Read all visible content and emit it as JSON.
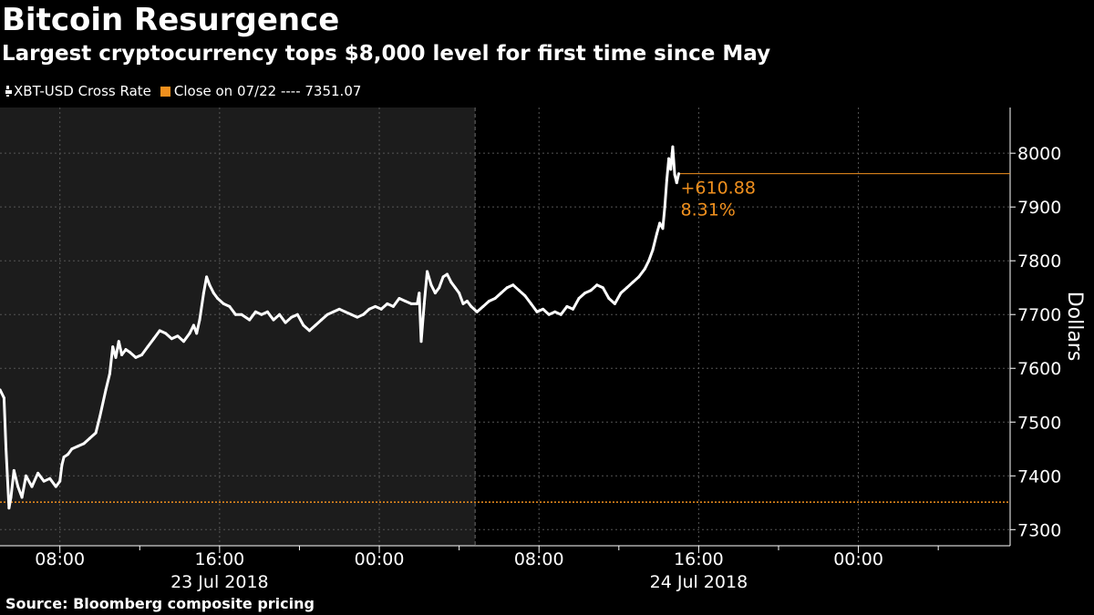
{
  "chart_data": {
    "type": "line",
    "title": "Bitcoin Resurgence",
    "subtitle": "Largest cryptocurrency tops $8,000 level for first time since May",
    "ylabel": "Dollars",
    "ylim": [
      7270,
      8085
    ],
    "y_ticks": [
      7300,
      7400,
      7500,
      7600,
      7700,
      7800,
      7900,
      8000
    ],
    "y_tick_labels": [
      "7300",
      "7400",
      "7500",
      "7600",
      "7700",
      "7800",
      "7900",
      "8000"
    ],
    "x_tick_labels": [
      {
        "hour": 8,
        "label": "08:00"
      },
      {
        "hour": 16,
        "label": "16:00"
      },
      {
        "hour": 24,
        "label": "00:00"
      },
      {
        "hour": 32,
        "label": "08:00"
      },
      {
        "hour": 40,
        "label": "16:00"
      },
      {
        "hour": 48,
        "label": "00:00"
      }
    ],
    "date_labels": [
      {
        "hour": 16,
        "label": "23 Jul 2018"
      },
      {
        "hour": 40,
        "label": "24 Jul 2018"
      }
    ],
    "xlim_hours": [
      5.0,
      55.6
    ],
    "minor_tick_hours": [
      12,
      20,
      28,
      36,
      44,
      52
    ],
    "shaded_until_hour": 28.8,
    "x_unit_note": "hours after 00:00 on 23 Jul 2018",
    "grid": true,
    "series": [
      {
        "name": "XBT-USD Cross Rate",
        "color": "#ffffff",
        "x": [
          5.0,
          5.2,
          5.3,
          5.45,
          5.55,
          5.7,
          5.9,
          6.1,
          6.3,
          6.6,
          6.9,
          7.2,
          7.5,
          7.8,
          8.0,
          8.1,
          8.2,
          8.4,
          8.6,
          8.9,
          9.2,
          9.5,
          9.8,
          10.0,
          10.3,
          10.5,
          10.65,
          10.8,
          10.95,
          11.1,
          11.3,
          11.5,
          11.8,
          12.1,
          12.4,
          12.7,
          13.0,
          13.3,
          13.6,
          13.9,
          14.2,
          14.5,
          14.7,
          14.85,
          15.0,
          15.2,
          15.35,
          15.5,
          15.7,
          15.9,
          16.2,
          16.5,
          16.8,
          17.1,
          17.5,
          17.8,
          18.1,
          18.4,
          18.7,
          19.0,
          19.3,
          19.6,
          19.9,
          20.2,
          20.5,
          20.8,
          21.1,
          21.4,
          21.7,
          22.0,
          22.3,
          22.6,
          22.9,
          23.2,
          23.5,
          23.8,
          24.1,
          24.4,
          24.7,
          25.0,
          25.3,
          25.6,
          25.9,
          26.0,
          26.1,
          26.25,
          26.4,
          26.6,
          26.8,
          27.0,
          27.2,
          27.4,
          27.6,
          27.8,
          28.0,
          28.2,
          28.4,
          28.6,
          28.9,
          29.2,
          29.5,
          29.8,
          30.1,
          30.4,
          30.7,
          31.0,
          31.3,
          31.6,
          31.9,
          32.2,
          32.5,
          32.8,
          33.1,
          33.4,
          33.7,
          34.0,
          34.3,
          34.6,
          34.9,
          35.2,
          35.5,
          35.8,
          36.1,
          36.4,
          36.7,
          37.0,
          37.3,
          37.5,
          37.7,
          37.9,
          38.05,
          38.2,
          38.3,
          38.4,
          38.5,
          38.6,
          38.7,
          38.8,
          38.9,
          39.0
        ],
        "y": [
          7560,
          7545,
          7450,
          7340,
          7360,
          7410,
          7380,
          7360,
          7400,
          7380,
          7405,
          7390,
          7395,
          7380,
          7390,
          7420,
          7435,
          7440,
          7450,
          7455,
          7460,
          7470,
          7480,
          7510,
          7560,
          7590,
          7640,
          7620,
          7650,
          7625,
          7635,
          7630,
          7620,
          7625,
          7640,
          7655,
          7670,
          7665,
          7655,
          7660,
          7650,
          7665,
          7680,
          7665,
          7690,
          7740,
          7770,
          7755,
          7740,
          7730,
          7720,
          7715,
          7700,
          7700,
          7690,
          7705,
          7700,
          7705,
          7690,
          7700,
          7685,
          7695,
          7700,
          7680,
          7670,
          7680,
          7690,
          7700,
          7705,
          7710,
          7705,
          7700,
          7695,
          7700,
          7710,
          7715,
          7710,
          7720,
          7715,
          7730,
          7725,
          7720,
          7720,
          7740,
          7650,
          7720,
          7780,
          7755,
          7740,
          7750,
          7770,
          7775,
          7760,
          7750,
          7740,
          7720,
          7725,
          7715,
          7705,
          7715,
          7725,
          7730,
          7740,
          7750,
          7755,
          7745,
          7735,
          7720,
          7705,
          7710,
          7700,
          7705,
          7700,
          7715,
          7710,
          7730,
          7740,
          7745,
          7755,
          7750,
          7730,
          7720,
          7740,
          7750,
          7760,
          7770,
          7785,
          7800,
          7820,
          7850,
          7870,
          7860,
          7900,
          7950,
          7990,
          7970,
          8012,
          7960,
          7945,
          7962
        ]
      },
      {
        "name": "Close on 07/22 ---- 7351.07",
        "color": "#f0901e",
        "type": "reference-line",
        "value": 7351.07
      }
    ],
    "annotations": [
      {
        "text": "+610.88",
        "color": "#f0901e"
      },
      {
        "text": "8.31%",
        "color": "#f0901e"
      }
    ],
    "last_value_line": 7962
  },
  "legend": {
    "series_label": "XBT-USD Cross Rate",
    "series_color": "#ffffff",
    "close_label": "Close on 07/22 ---- 7351.07",
    "close_color": "#f0901e"
  },
  "source": "Source: Bloomberg composite pricing"
}
